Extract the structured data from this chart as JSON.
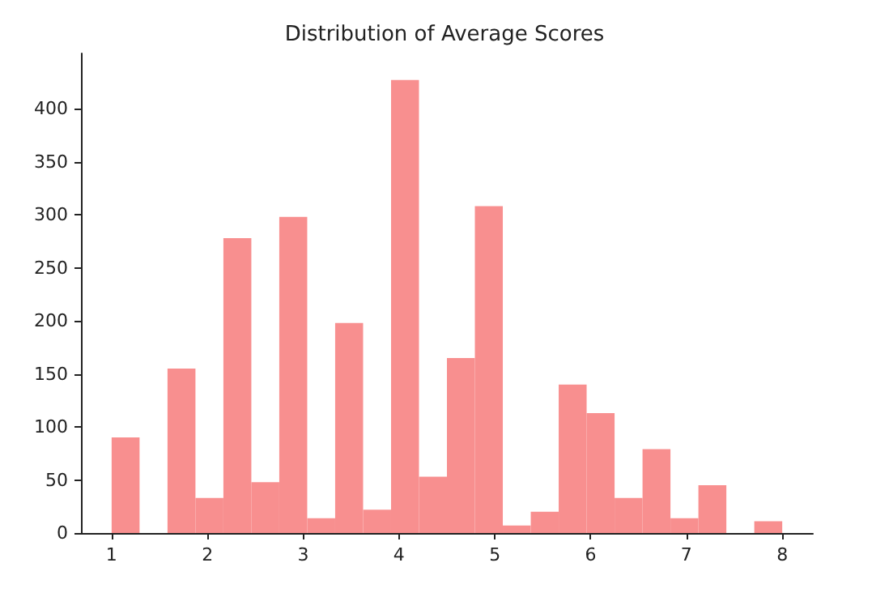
{
  "chart_data": {
    "type": "histogram",
    "title": "Distribution of Average Scores",
    "bins": [
      1,
      1.2917,
      1.5833,
      1.875,
      2.1667,
      2.4583,
      2.75,
      3.0417,
      3.3333,
      3.625,
      3.9167,
      4.2083,
      4.5,
      4.7917,
      5.0833,
      5.375,
      5.6667,
      5.9583,
      6.25,
      6.5417,
      6.8333,
      7.125,
      7.4167,
      7.7083,
      8
    ],
    "values": [
      90,
      0,
      155,
      33,
      278,
      48,
      298,
      14,
      198,
      22,
      427,
      53,
      165,
      308,
      7,
      20,
      140,
      113,
      33,
      79,
      14,
      45,
      0,
      11
    ],
    "color": "#f88f8f",
    "xlim": [
      0.68,
      8.32
    ],
    "xticks": [
      1,
      2,
      3,
      4,
      5,
      6,
      7,
      8
    ],
    "ylim": [
      0,
      452
    ],
    "yticks": [
      0,
      50,
      100,
      150,
      200,
      250,
      300,
      350,
      400
    ],
    "grid": false
  }
}
